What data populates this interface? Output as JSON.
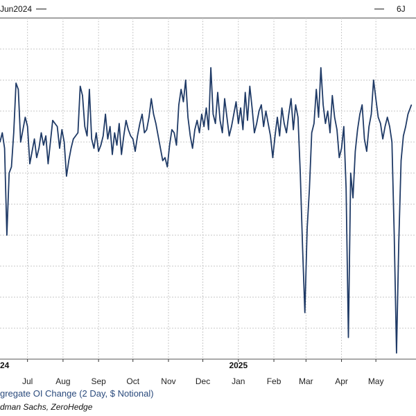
{
  "header": {
    "left_label": "Jun2024",
    "right_label": "6J"
  },
  "footer": {
    "legend_label": "gregate OI Change (2 Day, $ Notional)",
    "source": "dman Sachs, ZeroHedge"
  },
  "colors": {
    "line": "#1f3a66",
    "grid": "#c8c8c8",
    "axis": "#333333"
  },
  "chart_data": {
    "type": "line",
    "title": "",
    "xlabel": "",
    "ylabel": "",
    "grid": true,
    "xlim": [
      "2024-06-07",
      "2025-06-05"
    ],
    "ylim": [
      -7,
      4
    ],
    "year_labels": [
      {
        "date": "2024-06-07",
        "label": "24"
      },
      {
        "date": "2025-01-01",
        "label": "2025"
      }
    ],
    "month_ticks": [
      {
        "date": "2024-07-01",
        "label": "Jul"
      },
      {
        "date": "2024-08-01",
        "label": "Aug"
      },
      {
        "date": "2024-09-01",
        "label": "Sep"
      },
      {
        "date": "2024-10-01",
        "label": "Oct"
      },
      {
        "date": "2024-11-01",
        "label": "Nov"
      },
      {
        "date": "2024-12-01",
        "label": "Dec"
      },
      {
        "date": "2025-01-01",
        "label": "Jan"
      },
      {
        "date": "2025-02-01",
        "label": "Feb"
      },
      {
        "date": "2025-03-01",
        "label": "Mar"
      },
      {
        "date": "2025-04-01",
        "label": "Apr"
      },
      {
        "date": "2025-05-01",
        "label": "May"
      }
    ],
    "series": [
      {
        "values": [
          [
            "2024-06-07",
            0.0
          ],
          [
            "2024-06-09",
            0.3
          ],
          [
            "2024-06-11",
            -0.2
          ],
          [
            "2024-06-13",
            -3.0
          ],
          [
            "2024-06-15",
            -1.0
          ],
          [
            "2024-06-17",
            -0.8
          ],
          [
            "2024-06-19",
            0.3
          ],
          [
            "2024-06-21",
            1.9
          ],
          [
            "2024-06-23",
            1.7
          ],
          [
            "2024-06-25",
            0.0
          ],
          [
            "2024-06-27",
            0.4
          ],
          [
            "2024-06-29",
            0.8
          ],
          [
            "2024-07-01",
            0.5
          ],
          [
            "2024-07-03",
            -0.7
          ],
          [
            "2024-07-05",
            -0.3
          ],
          [
            "2024-07-07",
            0.1
          ],
          [
            "2024-07-09",
            -0.5
          ],
          [
            "2024-07-11",
            -0.2
          ],
          [
            "2024-07-13",
            0.3
          ],
          [
            "2024-07-15",
            -0.1
          ],
          [
            "2024-07-17",
            0.2
          ],
          [
            "2024-07-19",
            -0.7
          ],
          [
            "2024-07-21",
            0.0
          ],
          [
            "2024-07-23",
            0.7
          ],
          [
            "2024-07-25",
            0.6
          ],
          [
            "2024-07-27",
            0.5
          ],
          [
            "2024-07-29",
            -0.2
          ],
          [
            "2024-07-31",
            0.4
          ],
          [
            "2024-08-02",
            0.0
          ],
          [
            "2024-08-04",
            -1.1
          ],
          [
            "2024-08-06",
            -0.6
          ],
          [
            "2024-08-08",
            -0.2
          ],
          [
            "2024-08-10",
            0.1
          ],
          [
            "2024-08-12",
            0.2
          ],
          [
            "2024-08-14",
            0.3
          ],
          [
            "2024-08-16",
            1.8
          ],
          [
            "2024-08-18",
            1.5
          ],
          [
            "2024-08-20",
            0.5
          ],
          [
            "2024-08-22",
            0.2
          ],
          [
            "2024-08-24",
            1.7
          ],
          [
            "2024-08-26",
            0.1
          ],
          [
            "2024-08-28",
            -0.2
          ],
          [
            "2024-08-30",
            0.3
          ],
          [
            "2024-09-01",
            -0.3
          ],
          [
            "2024-09-03",
            -0.1
          ],
          [
            "2024-09-05",
            0.2
          ],
          [
            "2024-09-07",
            0.9
          ],
          [
            "2024-09-09",
            0.1
          ],
          [
            "2024-09-11",
            0.5
          ],
          [
            "2024-09-13",
            -0.4
          ],
          [
            "2024-09-15",
            0.3
          ],
          [
            "2024-09-17",
            -0.1
          ],
          [
            "2024-09-19",
            0.6
          ],
          [
            "2024-09-21",
            -0.4
          ],
          [
            "2024-09-23",
            0.2
          ],
          [
            "2024-09-25",
            0.7
          ],
          [
            "2024-09-27",
            0.4
          ],
          [
            "2024-09-29",
            0.2
          ],
          [
            "2024-10-01",
            0.1
          ],
          [
            "2024-10-03",
            -0.3
          ],
          [
            "2024-10-05",
            0.2
          ],
          [
            "2024-10-07",
            0.6
          ],
          [
            "2024-10-09",
            0.9
          ],
          [
            "2024-10-11",
            0.3
          ],
          [
            "2024-10-13",
            0.4
          ],
          [
            "2024-10-15",
            0.8
          ],
          [
            "2024-10-17",
            1.4
          ],
          [
            "2024-10-19",
            0.9
          ],
          [
            "2024-10-21",
            0.6
          ],
          [
            "2024-10-23",
            0.2
          ],
          [
            "2024-10-25",
            -0.2
          ],
          [
            "2024-10-27",
            -0.6
          ],
          [
            "2024-10-29",
            -0.5
          ],
          [
            "2024-10-31",
            -0.8
          ],
          [
            "2024-11-02",
            -0.1
          ],
          [
            "2024-11-04",
            0.4
          ],
          [
            "2024-11-06",
            0.3
          ],
          [
            "2024-11-08",
            -0.1
          ],
          [
            "2024-11-10",
            1.2
          ],
          [
            "2024-11-12",
            1.7
          ],
          [
            "2024-11-14",
            1.3
          ],
          [
            "2024-11-16",
            2.0
          ],
          [
            "2024-11-18",
            0.8
          ],
          [
            "2024-11-20",
            0.2
          ],
          [
            "2024-11-22",
            -0.2
          ],
          [
            "2024-11-24",
            0.4
          ],
          [
            "2024-11-26",
            0.7
          ],
          [
            "2024-11-28",
            0.3
          ],
          [
            "2024-11-30",
            0.9
          ],
          [
            "2024-12-02",
            0.5
          ],
          [
            "2024-12-04",
            1.1
          ],
          [
            "2024-12-06",
            0.4
          ],
          [
            "2024-12-08",
            2.4
          ],
          [
            "2024-12-10",
            0.9
          ],
          [
            "2024-12-12",
            0.6
          ],
          [
            "2024-12-14",
            1.6
          ],
          [
            "2024-12-16",
            0.7
          ],
          [
            "2024-12-18",
            0.3
          ],
          [
            "2024-12-20",
            1.4
          ],
          [
            "2024-12-22",
            0.8
          ],
          [
            "2024-12-24",
            0.2
          ],
          [
            "2024-12-26",
            0.5
          ],
          [
            "2024-12-28",
            0.9
          ],
          [
            "2024-12-30",
            1.3
          ],
          [
            "2025-01-01",
            0.6
          ],
          [
            "2025-01-03",
            1.1
          ],
          [
            "2025-01-05",
            0.4
          ],
          [
            "2025-01-07",
            1.6
          ],
          [
            "2025-01-09",
            0.7
          ],
          [
            "2025-01-11",
            1.8
          ],
          [
            "2025-01-13",
            1.1
          ],
          [
            "2025-01-15",
            0.3
          ],
          [
            "2025-01-17",
            0.6
          ],
          [
            "2025-01-19",
            1.0
          ],
          [
            "2025-01-21",
            1.2
          ],
          [
            "2025-01-23",
            0.5
          ],
          [
            "2025-01-25",
            1.0
          ],
          [
            "2025-01-27",
            0.6
          ],
          [
            "2025-01-29",
            0.2
          ],
          [
            "2025-01-31",
            -0.5
          ],
          [
            "2025-02-02",
            0.2
          ],
          [
            "2025-02-04",
            0.8
          ],
          [
            "2025-02-06",
            0.2
          ],
          [
            "2025-02-08",
            1.1
          ],
          [
            "2025-02-10",
            0.6
          ],
          [
            "2025-02-12",
            0.3
          ],
          [
            "2025-02-14",
            0.9
          ],
          [
            "2025-02-16",
            1.4
          ],
          [
            "2025-02-18",
            0.4
          ],
          [
            "2025-02-20",
            1.2
          ],
          [
            "2025-02-22",
            0.8
          ],
          [
            "2025-02-24",
            -1.0
          ],
          [
            "2025-02-26",
            -3.4
          ],
          [
            "2025-02-28",
            -5.5
          ],
          [
            "2025-03-02",
            -2.8
          ],
          [
            "2025-03-04",
            -1.5
          ],
          [
            "2025-03-06",
            0.3
          ],
          [
            "2025-03-08",
            0.6
          ],
          [
            "2025-03-10",
            1.7
          ],
          [
            "2025-03-12",
            0.8
          ],
          [
            "2025-03-14",
            2.4
          ],
          [
            "2025-03-16",
            1.2
          ],
          [
            "2025-03-18",
            0.6
          ],
          [
            "2025-03-20",
            1.0
          ],
          [
            "2025-03-22",
            0.3
          ],
          [
            "2025-03-24",
            1.5
          ],
          [
            "2025-03-26",
            0.8
          ],
          [
            "2025-03-28",
            0.4
          ],
          [
            "2025-03-30",
            -0.5
          ],
          [
            "2025-04-01",
            -0.2
          ],
          [
            "2025-04-03",
            0.5
          ],
          [
            "2025-04-05",
            -1.5
          ],
          [
            "2025-04-07",
            -6.3
          ],
          [
            "2025-04-09",
            -1.0
          ],
          [
            "2025-04-11",
            -1.8
          ],
          [
            "2025-04-13",
            -0.3
          ],
          [
            "2025-04-15",
            0.4
          ],
          [
            "2025-04-17",
            0.9
          ],
          [
            "2025-04-19",
            1.2
          ],
          [
            "2025-04-21",
            0.1
          ],
          [
            "2025-04-23",
            -0.3
          ],
          [
            "2025-04-25",
            0.5
          ],
          [
            "2025-04-27",
            0.9
          ],
          [
            "2025-04-29",
            2.0
          ],
          [
            "2025-05-01",
            1.4
          ],
          [
            "2025-05-03",
            0.8
          ],
          [
            "2025-05-05",
            0.6
          ],
          [
            "2025-05-07",
            0.1
          ],
          [
            "2025-05-09",
            0.5
          ],
          [
            "2025-05-11",
            0.8
          ],
          [
            "2025-05-13",
            0.5
          ],
          [
            "2025-05-15",
            0.0
          ],
          [
            "2025-05-17",
            -3.0
          ],
          [
            "2025-05-19",
            -6.8
          ],
          [
            "2025-05-21",
            -3.2
          ],
          [
            "2025-05-23",
            -0.6
          ],
          [
            "2025-05-25",
            0.2
          ],
          [
            "2025-05-27",
            0.5
          ],
          [
            "2025-05-29",
            0.9
          ],
          [
            "2025-06-01",
            1.2
          ]
        ]
      }
    ]
  }
}
